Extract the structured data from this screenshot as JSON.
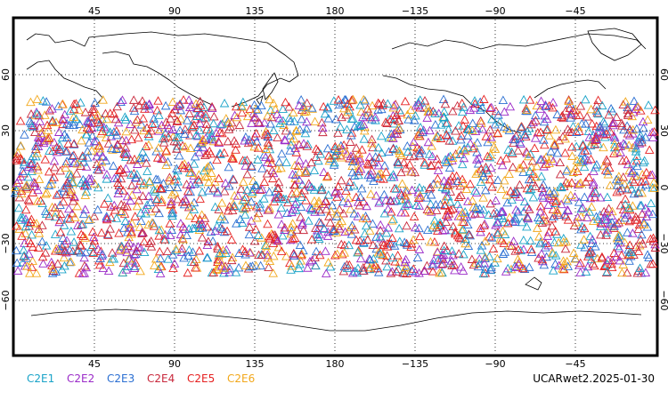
{
  "figure": {
    "footer": "UCARwet2.2025-01-30",
    "lon_ticks": [
      "45",
      "90",
      "135",
      "180",
      "−135",
      "−90",
      "−45"
    ],
    "lat_ticks": [
      "60",
      "30",
      "0",
      "−30",
      "−60"
    ]
  },
  "legend": [
    {
      "label": "C2E1",
      "color": "#19a3c8"
    },
    {
      "label": "C2E2",
      "color": "#9b2bc8"
    },
    {
      "label": "C2E3",
      "color": "#2b6fd2"
    },
    {
      "label": "C2E4",
      "color": "#c8283c"
    },
    {
      "label": "C2E5",
      "color": "#e62020"
    },
    {
      "label": "C2E6",
      "color": "#f2a81c"
    }
  ],
  "chart_data": {
    "type": "scatter",
    "projection": "equirectangular, centered on 180E",
    "lon_range": [
      0,
      360
    ],
    "lat_range": [
      -90,
      90
    ],
    "grid": true,
    "marker": "open-triangle",
    "point_lat_band": [
      -47,
      47
    ],
    "approx_points_per_series": 420,
    "series": [
      {
        "name": "C2E1"
      },
      {
        "name": "C2E2"
      },
      {
        "name": "C2E3"
      },
      {
        "name": "C2E4"
      },
      {
        "name": "C2E5"
      },
      {
        "name": "C2E6"
      }
    ]
  }
}
